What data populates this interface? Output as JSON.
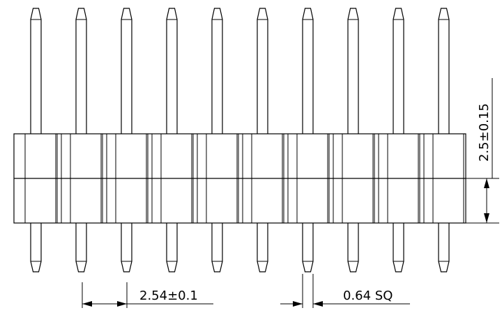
{
  "drawing": {
    "pin_count": 10,
    "dimensions": {
      "pitch": "2.54±0.1",
      "pin_size": "0.64 SQ",
      "body_height": "2.5±0.15"
    }
  }
}
